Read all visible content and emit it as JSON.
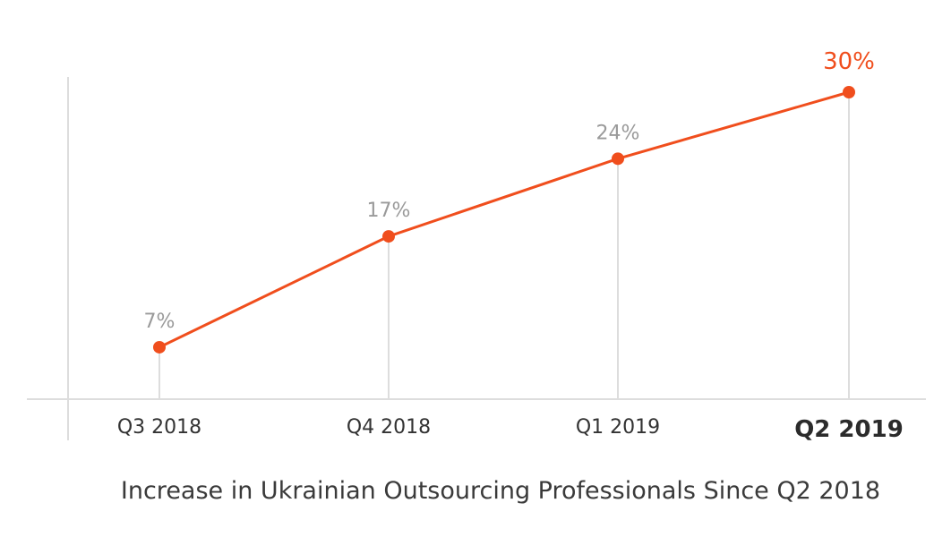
{
  "chart_data": {
    "type": "line",
    "title": "Increase in Ukrainian Outsourcing Professionals Since Q2 2018",
    "categories": [
      "Q3 2018",
      "Q4 2018",
      "Q1 2019",
      "Q2 2019"
    ],
    "series": [
      {
        "values": [
          7,
          17,
          24,
          30
        ],
        "value_labels": [
          "7%",
          "17%",
          "24%",
          "30%"
        ],
        "color": "#f04e1d"
      }
    ],
    "ylim": [
      0,
      32
    ],
    "highlight_last": true,
    "grid": "vertical-drop-lines",
    "legend": "none"
  },
  "colors": {
    "line": "#f04e1d",
    "axis": "#dddddd",
    "label_muted": "#9a9a9a",
    "label_dark": "#333333"
  }
}
